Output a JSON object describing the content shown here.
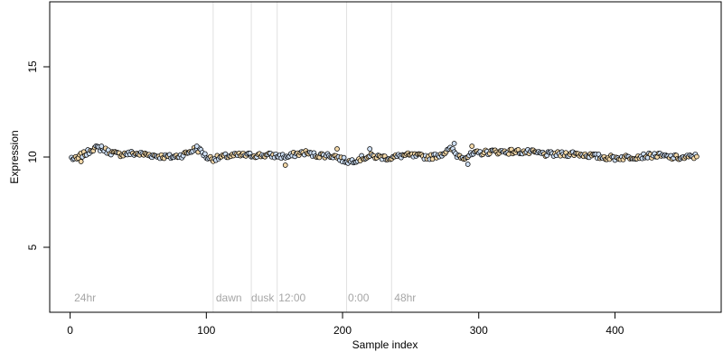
{
  "chart_data": {
    "type": "scatter",
    "title": "",
    "xlabel": "Sample index",
    "ylabel": "Expression",
    "xlim": [
      -15,
      478
    ],
    "ylim": [
      1.4,
      18.6
    ],
    "xticks": [
      0,
      100,
      200,
      300,
      400
    ],
    "yticks": [
      5,
      10,
      15
    ],
    "grid": false,
    "legend": "none",
    "colors": {
      "point_edge": "#000000",
      "point_fill_a": "#cfe0f5",
      "point_fill_b": "#f3d8a8",
      "vline": "#e0e0e0",
      "annotation_text": "#a6a6a6"
    },
    "vertical_lines": [
      105,
      133,
      152,
      203,
      236
    ],
    "annotations": [
      {
        "text": "24hr",
        "x": 3,
        "y": 2.0
      },
      {
        "text": "dawn",
        "x": 107,
        "y": 2.0
      },
      {
        "text": "dusk",
        "x": 133,
        "y": 2.0
      },
      {
        "text": "12:00",
        "x": 153,
        "y": 2.0
      },
      {
        "text": "0:00",
        "x": 204,
        "y": 2.0
      },
      {
        "text": "48hr",
        "x": 238,
        "y": 2.0
      }
    ],
    "profile": [
      [
        1,
        9.95
      ],
      [
        5,
        9.85
      ],
      [
        8,
        10.1
      ],
      [
        12,
        10.2
      ],
      [
        16,
        10.45
      ],
      [
        20,
        10.5
      ],
      [
        24,
        10.45
      ],
      [
        28,
        10.3
      ],
      [
        35,
        10.15
      ],
      [
        45,
        10.2
      ],
      [
        55,
        10.15
      ],
      [
        65,
        10.05
      ],
      [
        75,
        10.0
      ],
      [
        82,
        10.1
      ],
      [
        88,
        10.3
      ],
      [
        92,
        10.45
      ],
      [
        96,
        10.35
      ],
      [
        100,
        10.0
      ],
      [
        105,
        9.9
      ],
      [
        115,
        10.05
      ],
      [
        125,
        10.1
      ],
      [
        135,
        10.1
      ],
      [
        145,
        10.1
      ],
      [
        155,
        10.05
      ],
      [
        160,
        10.0
      ],
      [
        165,
        10.15
      ],
      [
        172,
        10.25
      ],
      [
        180,
        10.1
      ],
      [
        188,
        10.1
      ],
      [
        195,
        10.05
      ],
      [
        200,
        9.85
      ],
      [
        205,
        9.75
      ],
      [
        212,
        9.9
      ],
      [
        220,
        10.05
      ],
      [
        228,
        10.0
      ],
      [
        235,
        9.95
      ],
      [
        245,
        10.1
      ],
      [
        255,
        10.05
      ],
      [
        265,
        10.0
      ],
      [
        272,
        10.15
      ],
      [
        280,
        10.45
      ],
      [
        284,
        10.1
      ],
      [
        290,
        10.0
      ],
      [
        298,
        10.2
      ],
      [
        310,
        10.3
      ],
      [
        320,
        10.3
      ],
      [
        330,
        10.3
      ],
      [
        340,
        10.25
      ],
      [
        350,
        10.15
      ],
      [
        360,
        10.15
      ],
      [
        370,
        10.2
      ],
      [
        380,
        10.1
      ],
      [
        390,
        10.0
      ],
      [
        400,
        9.95
      ],
      [
        410,
        10.0
      ],
      [
        420,
        10.05
      ],
      [
        430,
        10.1
      ],
      [
        440,
        10.0
      ],
      [
        450,
        9.95
      ],
      [
        460,
        10.05
      ]
    ],
    "outliers": [
      [
        8,
        9.75
      ],
      [
        23,
        10.6
      ],
      [
        93,
        10.6
      ],
      [
        158,
        9.55
      ],
      [
        196,
        10.45
      ],
      [
        220,
        10.45
      ],
      [
        282,
        10.75
      ],
      [
        292,
        9.6
      ],
      [
        295,
        10.6
      ]
    ],
    "n_points": 460
  }
}
